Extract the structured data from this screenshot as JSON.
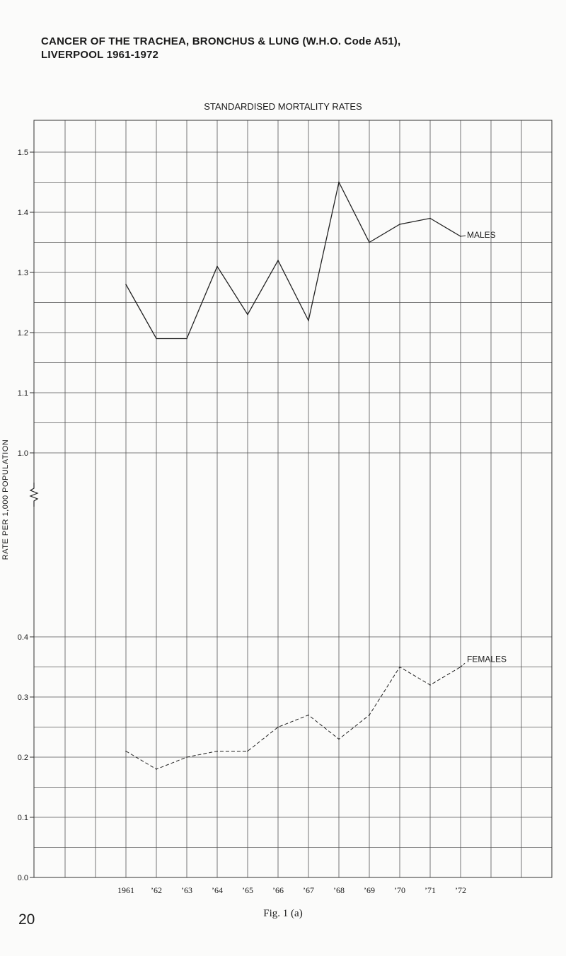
{
  "page": {
    "title_line1": "CANCER OF THE TRACHEA, BRONCHUS & LUNG (W.H.O. Code A51),",
    "title_line2": "LIVERPOOL 1961-1972",
    "caption": "Fig. 1 (a)",
    "page_number": "20"
  },
  "chart_data": {
    "type": "line",
    "title": "STANDARDISED MORTALITY RATES",
    "ylabel": "RATE PER 1,000 POPULATION",
    "xlabel": "",
    "categories": [
      "1961",
      "’62",
      "’63",
      "’64",
      "’65",
      "’66",
      "’67",
      "’68",
      "’69",
      "’70",
      "’71",
      "’72"
    ],
    "y_ticks": [
      {
        "value": 0.0,
        "label": "0.0"
      },
      {
        "value": 0.1,
        "label": "0.1"
      },
      {
        "value": 0.2,
        "label": "0.2"
      },
      {
        "value": 0.3,
        "label": "0.3"
      },
      {
        "value": 0.4,
        "label": "0.4"
      },
      {
        "value": 1.0,
        "label": "1.0"
      },
      {
        "value": 1.1,
        "label": "1.1"
      },
      {
        "value": 1.2,
        "label": "1.2"
      },
      {
        "value": 1.3,
        "label": "1.3"
      },
      {
        "value": 1.4,
        "label": "1.4"
      },
      {
        "value": 1.5,
        "label": "1.5"
      }
    ],
    "axis_break": {
      "from": 0.4,
      "to": 1.0
    },
    "grid": true,
    "series": [
      {
        "name": "MALES",
        "style": "solid",
        "values": [
          1.28,
          1.19,
          1.19,
          1.31,
          1.23,
          1.32,
          1.22,
          1.45,
          1.35,
          1.38,
          1.39,
          1.36
        ]
      },
      {
        "name": "FEMALES",
        "style": "dashed",
        "values": [
          0.21,
          0.18,
          0.2,
          0.21,
          0.21,
          0.25,
          0.27,
          0.23,
          0.27,
          0.35,
          0.32,
          0.35
        ]
      }
    ]
  }
}
